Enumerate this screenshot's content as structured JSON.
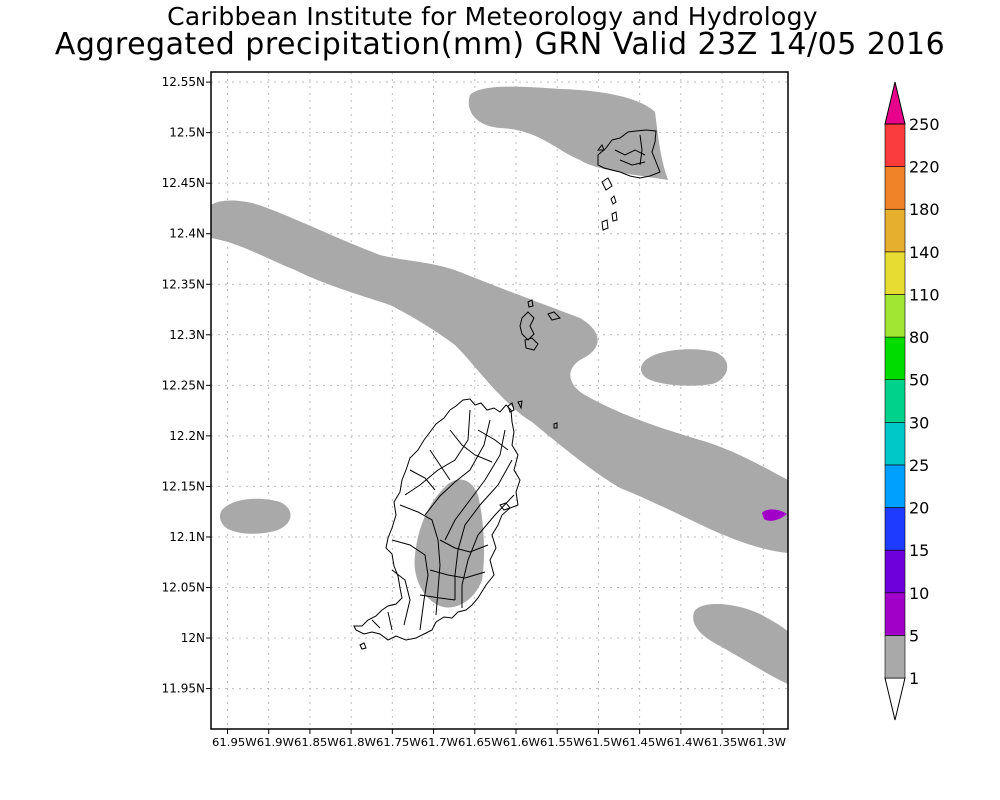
{
  "title": {
    "line1": "Caribbean Institute for Meteorology and Hydrology",
    "line2": "Aggregated precipitation(mm) GRN Valid 23Z 14/05 2016"
  },
  "map": {
    "lon_range": [
      -61.97,
      -61.27
    ],
    "lat_range": [
      11.91,
      12.56
    ],
    "y_ticks": [
      "12.55N",
      "12.5N",
      "12.45N",
      "12.4N",
      "12.35N",
      "12.3N",
      "12.25N",
      "12.2N",
      "12.15N",
      "12.1N",
      "12.05N",
      "12N",
      "11.95N"
    ],
    "y_tick_values": [
      12.55,
      12.5,
      12.45,
      12.4,
      12.35,
      12.3,
      12.25,
      12.2,
      12.15,
      12.1,
      12.05,
      12.0,
      11.95
    ],
    "x_ticks_text": "61.95W61.9W61.85W61.8W61.75W61.7W61.65W61.6W61.55W61.5W61.45W61.4W61.35W61.3W",
    "x_tick_values": [
      -61.95,
      -61.9,
      -61.85,
      -61.8,
      -61.75,
      -61.7,
      -61.65,
      -61.6,
      -61.55,
      -61.5,
      -61.45,
      -61.4,
      -61.35,
      -61.3
    ],
    "grid": true,
    "colors": {
      "rain_1_5": "#a9a9a9",
      "rain_5_10": "#a000c8",
      "coast": "#000000",
      "grid": "#bbbbbb"
    }
  },
  "legend": {
    "labels": [
      "1",
      "5",
      "10",
      "15",
      "20",
      "25",
      "30",
      "50",
      "80",
      "110",
      "140",
      "180",
      "220",
      "250"
    ],
    "colors": [
      "#ffffff",
      "#a9a9a9",
      "#a000c8",
      "#6e00dc",
      "#1e3cff",
      "#00a0ff",
      "#00c8c8",
      "#00d28c",
      "#00dc00",
      "#a0e632",
      "#e6dc32",
      "#e6af2d",
      "#f08228",
      "#fa3c3c",
      "#e6008c"
    ]
  }
}
